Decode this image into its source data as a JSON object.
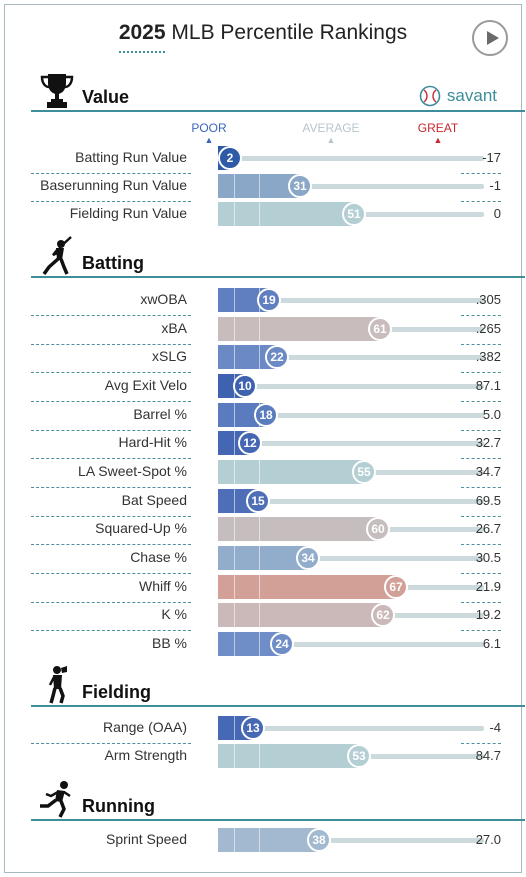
{
  "header": {
    "year": "2025",
    "title": "MLB Percentile Rankings"
  },
  "brand": {
    "label": "savant"
  },
  "legend": {
    "poor": "POOR",
    "average": "AVERAGE",
    "great": "GREAT"
  },
  "sections": [
    {
      "key": "value",
      "title": "Value",
      "icon": "trophy-icon",
      "rows": [
        {
          "label": "Batting Run Value",
          "percentile": 2,
          "value": "-17",
          "color": "#2f5aa8"
        },
        {
          "label": "Baserunning Run Value",
          "percentile": 31,
          "value": "-1",
          "color": "#8aa7c8"
        },
        {
          "label": "Fielding Run Value",
          "percentile": 51,
          "value": "0",
          "color": "#b3cfd3"
        }
      ]
    },
    {
      "key": "batting",
      "title": "Batting",
      "icon": "batter-icon",
      "rows": [
        {
          "label": "xwOBA",
          "percentile": 19,
          "value": ".305",
          "color": "#5f7fc0"
        },
        {
          "label": "xBA",
          "percentile": 61,
          "value": ".265",
          "color": "#c9bcbc"
        },
        {
          "label": "xSLG",
          "percentile": 22,
          "value": ".382",
          "color": "#6a89c5"
        },
        {
          "label": "Avg Exit Velo",
          "percentile": 10,
          "value": "87.1",
          "color": "#3f62b0"
        },
        {
          "label": "Barrel %",
          "percentile": 18,
          "value": "5.0",
          "color": "#5a7bbe"
        },
        {
          "label": "Hard-Hit %",
          "percentile": 12,
          "value": "32.7",
          "color": "#4466b3"
        },
        {
          "label": "LA Sweet-Spot %",
          "percentile": 55,
          "value": "34.7",
          "color": "#b4cfd3"
        },
        {
          "label": "Bat Speed",
          "percentile": 15,
          "value": "69.5",
          "color": "#4e6fb8"
        },
        {
          "label": "Squared-Up %",
          "percentile": 60,
          "value": "26.7",
          "color": "#c6bebe"
        },
        {
          "label": "Chase %",
          "percentile": 34,
          "value": "30.5",
          "color": "#92adcb"
        },
        {
          "label": "Whiff %",
          "percentile": 67,
          "value": "21.9",
          "color": "#d2a097"
        },
        {
          "label": "K %",
          "percentile": 62,
          "value": "19.2",
          "color": "#cab9b8"
        },
        {
          "label": "BB %",
          "percentile": 24,
          "value": "6.1",
          "color": "#6f8dc6"
        }
      ]
    },
    {
      "key": "fielding",
      "title": "Fielding",
      "icon": "fielder-icon",
      "rows": [
        {
          "label": "Range (OAA)",
          "percentile": 13,
          "value": "-4",
          "color": "#4768b4"
        },
        {
          "label": "Arm Strength",
          "percentile": 53,
          "value": "84.7",
          "color": "#b4cfd3"
        }
      ]
    },
    {
      "key": "running",
      "title": "Running",
      "icon": "runner-icon",
      "rows": [
        {
          "label": "Sprint Speed",
          "percentile": 38,
          "value": "27.0",
          "color": "#a3b9cf"
        }
      ]
    }
  ]
}
